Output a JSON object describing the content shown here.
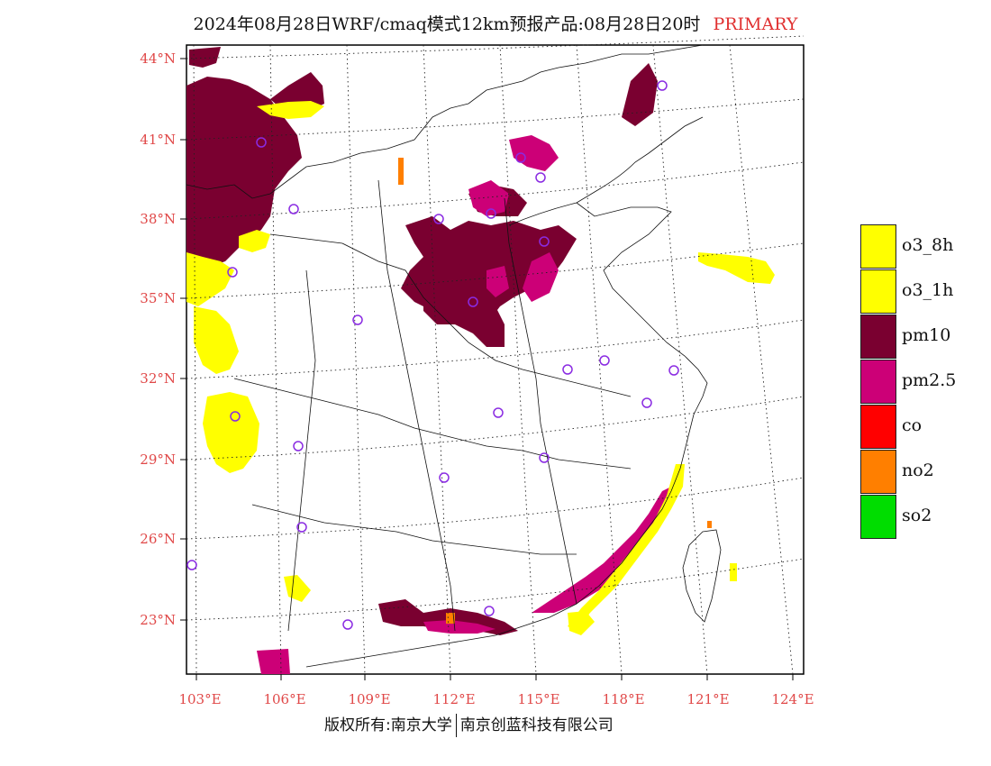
{
  "title": {
    "main": "2024年08月28日WRF/cmaq模式12km预报产品:08月28日20时",
    "tag": "PRIMARY"
  },
  "lat_labels": [
    "44°N",
    "41°N",
    "38°N",
    "35°N",
    "32°N",
    "29°N",
    "26°N",
    "23°N"
  ],
  "lon_labels": [
    "103°E",
    "106°E",
    "109°E",
    "112°E",
    "115°E",
    "118°E",
    "121°E",
    "124°E"
  ],
  "legend": [
    {
      "label": "o3_8h",
      "color": "#ffff00"
    },
    {
      "label": "o3_1h",
      "color": "#ffff00"
    },
    {
      "label": "pm10",
      "color": "#7a0030"
    },
    {
      "label": "pm2.5",
      "color": "#cc0077"
    },
    {
      "label": "co",
      "color": "#ff0000"
    },
    {
      "label": "no2",
      "color": "#ff7f00"
    },
    {
      "label": "so2",
      "color": "#00dd00"
    }
  ],
  "footer": {
    "left": "版权所有:南京大学",
    "right": "南京创蓝科技有限公司"
  },
  "colors": {
    "o3": "#ffff00",
    "pm10": "#7a0030",
    "pm25": "#cc0077",
    "no2": "#ff7f00",
    "axis_label": "#e04848",
    "city_marker": "#8a2be2"
  }
}
